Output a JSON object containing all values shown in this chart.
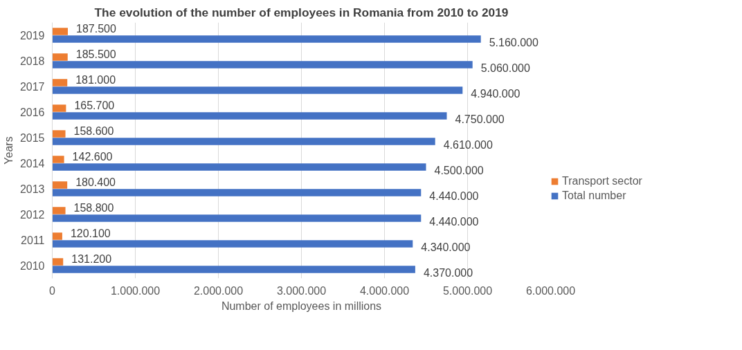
{
  "chart_data": {
    "type": "bar",
    "orientation": "horizontal",
    "title": "The evolution of the number of employees in Romania from 2010 to 2019",
    "xlabel": "Number of employees in millions",
    "ylabel": "Years",
    "categories": [
      "2019",
      "2018",
      "2017",
      "2016",
      "2015",
      "2014",
      "2013",
      "2012",
      "2011",
      "2010"
    ],
    "series": [
      {
        "name": "Transport sector",
        "color": "#ed7d31",
        "values": [
          187500,
          185500,
          181000,
          165700,
          158600,
          142600,
          180400,
          158800,
          120100,
          131200
        ],
        "value_labels": [
          "187.500",
          "185.500",
          "181.000",
          "165.700",
          "158.600",
          "142.600",
          "180.400",
          "158.800",
          "120.100",
          "131.200"
        ]
      },
      {
        "name": "Total number",
        "color": "#4472c4",
        "values": [
          5160000,
          5060000,
          4940000,
          4750000,
          4610000,
          4500000,
          4440000,
          4440000,
          4340000,
          4370000
        ],
        "value_labels": [
          "5.160.000",
          "5.060.000",
          "4.940.000",
          "4.750.000",
          "4.610.000",
          "4.500.000",
          "4.440.000",
          "4.440.000",
          "4.340.000",
          "4.370.000"
        ]
      }
    ],
    "xlim": [
      0,
      6000000
    ],
    "xticks": [
      0,
      {
        "value": 1000000,
        "label": "1.000.000"
      },
      {
        "value": 2000000,
        "label": "2.000.000"
      },
      {
        "value": 3000000,
        "label": "3.000.000"
      },
      {
        "value": 4000000,
        "label": "4.000.000"
      },
      {
        "value": 5000000,
        "label": "5.000.000"
      },
      {
        "value": 6000000,
        "label": "6.000.000"
      }
    ],
    "grid": "x",
    "legend": "right"
  }
}
